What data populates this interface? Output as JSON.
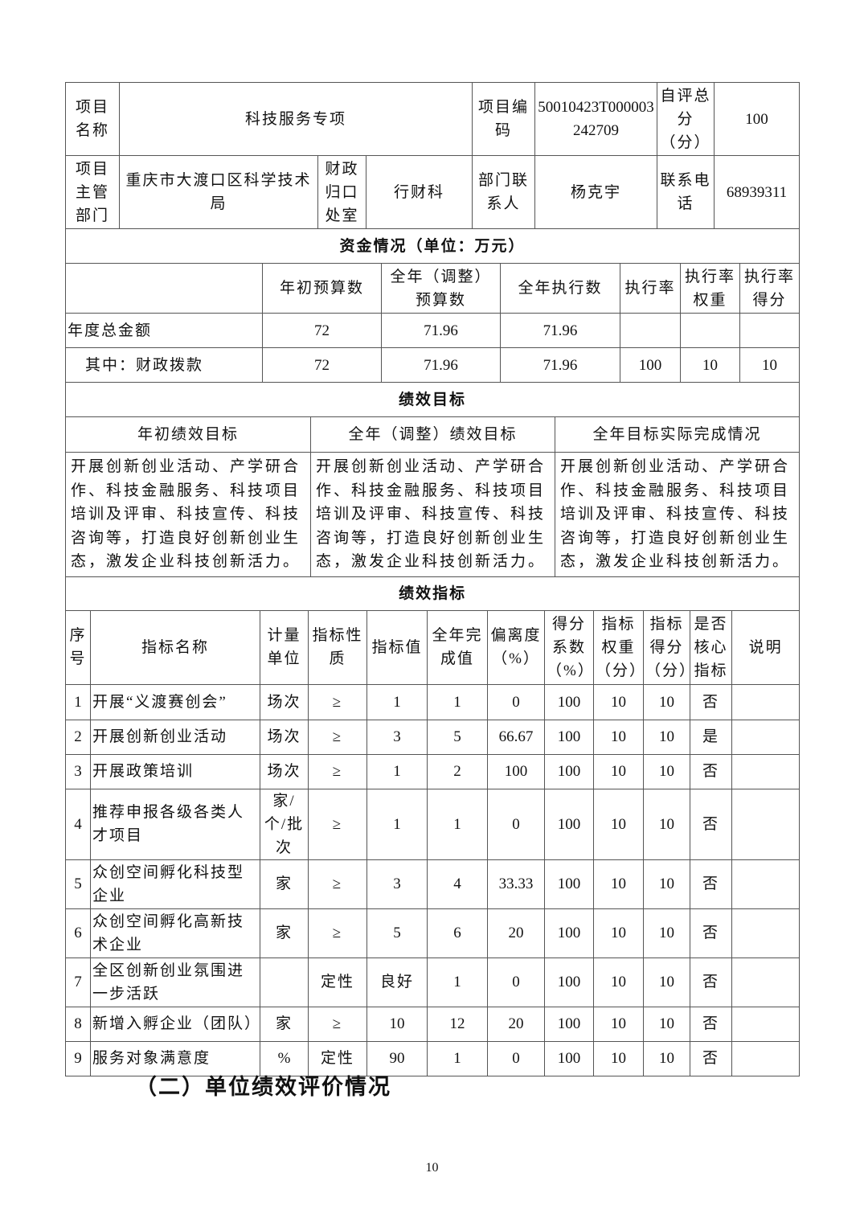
{
  "project": {
    "name_label": "项目名称",
    "name_value": "科技服务专项",
    "code_label": "项目编码",
    "code_value": "50010423T000003242709",
    "score_label": "自评总分（分）",
    "score_value": "100",
    "dept_label": "项目主管部门",
    "dept_value": "重庆市大渡口区科学技术局",
    "office_label": "财政归口处室",
    "office_value": "行财科",
    "contact_label": "部门联系人",
    "contact_value": "杨克宇",
    "phone_label": "联系电话",
    "phone_value": "68939311"
  },
  "funds": {
    "title": "资金情况（单位：万元）",
    "headers": [
      "",
      "年初预算数",
      "全年（调整）预算数",
      "全年执行数",
      "执行率",
      "执行率权重",
      "执行率得分"
    ],
    "rows": [
      [
        "年度总金额",
        "72",
        "71.96",
        "71.96",
        "",
        "",
        ""
      ],
      [
        "其中：财政拨款",
        "72",
        "71.96",
        "71.96",
        "100",
        "10",
        "10"
      ]
    ]
  },
  "goals": {
    "title": "绩效目标",
    "headers": [
      "年初绩效目标",
      "全年（调整）绩效目标",
      "全年目标实际完成情况"
    ],
    "values": [
      "开展创新创业活动、产学研合作、科技金融服务、科技项目培训及评审、科技宣传、科技咨询等，打造良好创新创业生态，激发企业科技创新活力。",
      "开展创新创业活动、产学研合作、科技金融服务、科技项目培训及评审、科技宣传、科技咨询等，打造良好创新创业生态，激发企业科技创新活力。",
      "开展创新创业活动、产学研合作、科技金融服务、科技项目培训及评审、科技宣传、科技咨询等，打造良好创新创业生态，激发企业科技创新活力。"
    ]
  },
  "indicators": {
    "title": "绩效指标",
    "headers": [
      "序号",
      "指标名称",
      "计量单位",
      "指标性质",
      "指标值",
      "全年完成值",
      "偏离度（%）",
      "得分系数（%）",
      "指标权重（分）",
      "指标得分（分）",
      "是否核心指标",
      "说明"
    ],
    "rows": [
      [
        "1",
        "开展“义渡赛创会”",
        "场次",
        "≥",
        "1",
        "1",
        "0",
        "100",
        "10",
        "10",
        "否",
        ""
      ],
      [
        "2",
        "开展创新创业活动",
        "场次",
        "≥",
        "3",
        "5",
        "66.67",
        "100",
        "10",
        "10",
        "是",
        ""
      ],
      [
        "3",
        "开展政策培训",
        "场次",
        "≥",
        "1",
        "2",
        "100",
        "100",
        "10",
        "10",
        "否",
        ""
      ],
      [
        "4",
        "推荐申报各级各类人才项目",
        "家/个/批次",
        "≥",
        "1",
        "1",
        "0",
        "100",
        "10",
        "10",
        "否",
        ""
      ],
      [
        "5",
        "众创空间孵化科技型企业",
        "家",
        "≥",
        "3",
        "4",
        "33.33",
        "100",
        "10",
        "10",
        "否",
        ""
      ],
      [
        "6",
        "众创空间孵化高新技术企业",
        "家",
        "≥",
        "5",
        "6",
        "20",
        "100",
        "10",
        "10",
        "否",
        ""
      ],
      [
        "7",
        "全区创新创业氛围进一步活跃",
        "",
        "定性",
        "良好",
        "1",
        "0",
        "100",
        "10",
        "10",
        "否",
        ""
      ],
      [
        "8",
        "新增入孵企业（团队）",
        "家",
        "≥",
        "10",
        "12",
        "20",
        "100",
        "10",
        "10",
        "否",
        ""
      ],
      [
        "9",
        "服务对象满意度",
        "%",
        "定性",
        "90",
        "1",
        "0",
        "100",
        "10",
        "10",
        "否",
        ""
      ]
    ]
  },
  "section_heading": "（二）单位绩效评价情况",
  "page_number": "10"
}
